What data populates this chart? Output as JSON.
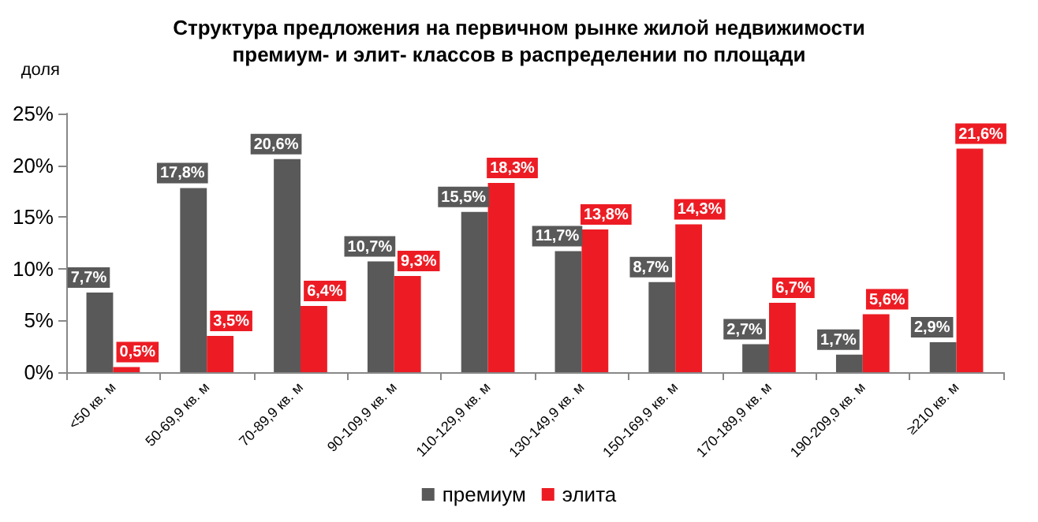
{
  "chart_data": {
    "type": "bar",
    "title": "Структура предложения на первичном рынке жилой недвижимости\nпремиум- и элит- классов в распределении по площади",
    "ylabel": "доля",
    "categories": [
      "<50 кв. м",
      "50-69,9 кв. м",
      "70-89,9 кв. м",
      "90-109,9 кв. м",
      "110-129,9 кв. м",
      "130-149,9 кв. м",
      "150-169,9 кв. м",
      "170-189,9 кв. м",
      "190-209,9 кв. м",
      "≥210 кв. м"
    ],
    "series": [
      {
        "name": "премиум",
        "color": "#595959",
        "values": [
          7.7,
          17.8,
          20.6,
          10.7,
          15.5,
          11.7,
          8.7,
          2.7,
          1.7,
          2.9
        ],
        "value_labels": [
          "7,7%",
          "17,8%",
          "20,6%",
          "10,7%",
          "15,5%",
          "11,7%",
          "8,7%",
          "2,7%",
          "1,7%",
          "2,9%"
        ]
      },
      {
        "name": "элита",
        "color": "#ed1c24",
        "values": [
          0.5,
          3.5,
          6.4,
          9.3,
          18.3,
          13.8,
          14.3,
          6.7,
          5.6,
          21.6
        ],
        "value_labels": [
          "0,5%",
          "3,5%",
          "6,4%",
          "9,3%",
          "18,3%",
          "13,8%",
          "14,3%",
          "6,7%",
          "5,6%",
          "21,6%"
        ]
      }
    ],
    "ylim": [
      0,
      25
    ],
    "yticks": [
      {
        "value": 0,
        "label": "0%"
      },
      {
        "value": 5,
        "label": "5%"
      },
      {
        "value": 10,
        "label": "10%"
      },
      {
        "value": 15,
        "label": "15%"
      },
      {
        "value": 20,
        "label": "20%"
      },
      {
        "value": 25,
        "label": "25%"
      }
    ],
    "grid": false,
    "legend": "bottom"
  }
}
